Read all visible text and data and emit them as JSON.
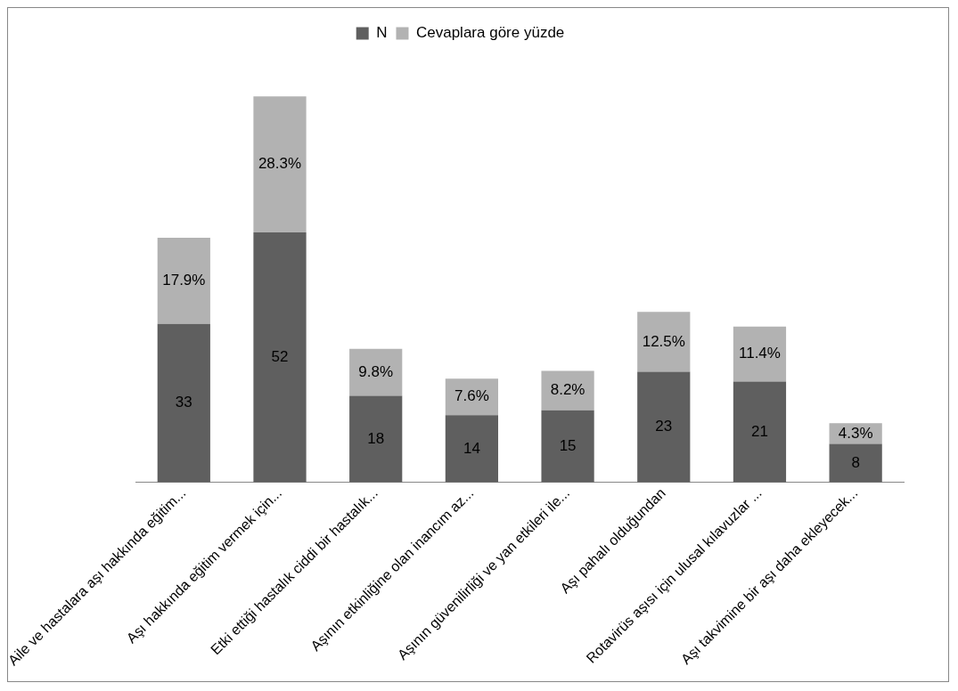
{
  "chart_data": {
    "type": "bar",
    "stacked": true,
    "legend": "top",
    "grid": false,
    "tick_labels": "x",
    "categories": [
      "Aile ve hastalara aşı hakkında eğitim...",
      "Aşı hakkında eğitim vermek için...",
      "Etki ettiği hastalık ciddi bir hastalık...",
      "Aşının etkinliğine olan inancım az...",
      "Aşının güvenilirliği ve yan etkileri ile...",
      "Aşı pahalı olduğundan",
      "Rotavirüs aşısı için ulusal kılavuzlar ...",
      "Aşı takvimine bir aşı daha ekleyecek..."
    ],
    "series": [
      {
        "name": "N",
        "color": "#5f5f5f",
        "values": [
          33,
          52,
          18,
          14,
          15,
          23,
          21,
          8
        ],
        "value_labels": [
          "33",
          "52",
          "18",
          "14",
          "15",
          "23",
          "21",
          "8"
        ]
      },
      {
        "name": "Cevaplara göre yüzde",
        "color": "#b2b2b2",
        "values": [
          17.9,
          28.3,
          9.8,
          7.6,
          8.2,
          12.5,
          11.4,
          4.3
        ],
        "value_labels": [
          "17.9%",
          "28.3%",
          "9.8%",
          "7.6%",
          "8.2%",
          "12.5%",
          "11.4%",
          "4.3%"
        ]
      }
    ]
  }
}
